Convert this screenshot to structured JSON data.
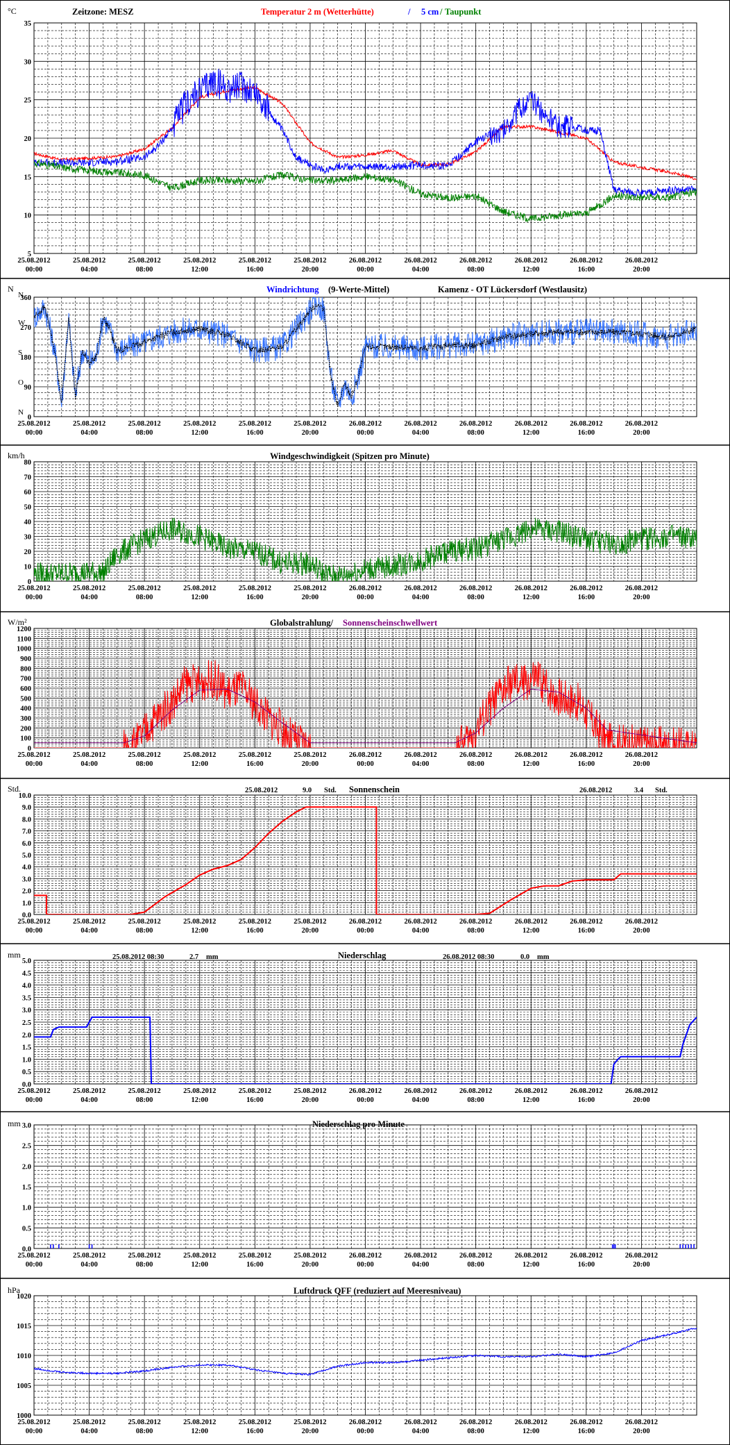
{
  "page": {
    "background": "#ffffff",
    "grid_color": "#000000"
  },
  "xaxis": {
    "ticks": [
      {
        "date": "25.08.2012",
        "time": "00:00"
      },
      {
        "date": "25.08.2012",
        "time": "04:00"
      },
      {
        "date": "25.08.2012",
        "time": "08:00"
      },
      {
        "date": "25.08.2012",
        "time": "12:00"
      },
      {
        "date": "25.08.2012",
        "time": "16:00"
      },
      {
        "date": "25.08.2012",
        "time": "20:00"
      },
      {
        "date": "26.08.2012",
        "time": "00:00"
      },
      {
        "date": "26.08.2012",
        "time": "04:00"
      },
      {
        "date": "26.08.2012",
        "time": "08:00"
      },
      {
        "date": "26.08.2012",
        "time": "12:00"
      },
      {
        "date": "26.08.2012",
        "time": "16:00"
      },
      {
        "date": "26.08.2012",
        "time": "20:00"
      }
    ],
    "range_hours": [
      0,
      48
    ]
  },
  "chart_data": [
    {
      "id": "temperature",
      "type": "line",
      "unit": "°C",
      "ylim": [
        5,
        35
      ],
      "yticks": [
        5,
        10,
        15,
        20,
        25,
        30,
        35
      ],
      "titles": [
        {
          "text": "Zeitzone: MESZ",
          "color": "#000000"
        },
        {
          "text": "Temperatur 2 m (Wetterhütte)",
          "color": "#ff0000"
        },
        {
          "text": "/",
          "color": "#0000ff"
        },
        {
          "text": "5 cm",
          "color": "#0000ff"
        },
        {
          "text": "/",
          "color": "#008000"
        },
        {
          "text": "Taupunkt",
          "color": "#008000"
        }
      ],
      "series": [
        {
          "name": "Temperatur 2 m (Wetterhütte)",
          "color": "#ff0000",
          "x": [
            0,
            2,
            4,
            6,
            8,
            10,
            12,
            14,
            16,
            18,
            20,
            22,
            24,
            26,
            28,
            30,
            32,
            34,
            36,
            38,
            40,
            42,
            44,
            46,
            48
          ],
          "y": [
            18,
            17.2,
            17.4,
            17.6,
            18.6,
            21.3,
            25.3,
            26.2,
            26.6,
            24.5,
            19.4,
            17.5,
            17.8,
            18.4,
            16.5,
            16.6,
            18.2,
            21.5,
            21.5,
            20.8,
            20,
            16.9,
            16.2,
            15.6,
            14.7
          ],
          "noise": 0.2
        },
        {
          "name": "5 cm",
          "color": "#0000ff",
          "x": [
            0,
            2,
            4,
            6,
            8,
            9,
            10,
            11,
            12,
            13,
            14,
            15,
            16,
            17,
            18,
            19,
            20,
            21,
            22,
            24,
            26,
            28,
            30,
            32,
            33,
            34,
            35,
            36,
            37,
            38,
            39,
            40,
            41,
            42,
            44,
            46,
            48
          ],
          "y": [
            16.8,
            16.8,
            16.8,
            17,
            17.5,
            19,
            21.3,
            24.5,
            26,
            27.5,
            26.5,
            26.8,
            26.2,
            23.5,
            21,
            17.5,
            16.5,
            15.8,
            16.4,
            16.2,
            16.3,
            16.5,
            16.4,
            19.5,
            20.5,
            21,
            23.5,
            25,
            23,
            21.5,
            21.5,
            21,
            21,
            13.3,
            12.8,
            13.2,
            13.3
          ],
          "noise": 0.5,
          "noise_hours": [
            10,
            17,
            4.0,
            33,
            39,
            3.0
          ]
        },
        {
          "name": "Taupunkt",
          "color": "#008000",
          "x": [
            0,
            2,
            4,
            6,
            8,
            10,
            12,
            14,
            16,
            18,
            20,
            22,
            24,
            26,
            28,
            30,
            32,
            34,
            36,
            38,
            40,
            42,
            44,
            46,
            48
          ],
          "y": [
            16.8,
            16.2,
            15.8,
            15.5,
            15.2,
            13.5,
            14.5,
            14.5,
            14.4,
            15.2,
            14.5,
            14.5,
            15,
            14.6,
            12.8,
            12.2,
            12.5,
            10.5,
            9.5,
            10,
            10.2,
            12.5,
            12.3,
            12.3,
            13
          ],
          "noise": 0.5
        }
      ]
    },
    {
      "id": "wind_direction",
      "type": "line",
      "unit": "N",
      "ylim": [
        0,
        360
      ],
      "yticks": [
        0,
        90,
        180,
        270,
        360
      ],
      "compass": [
        {
          "label": "N",
          "value": 360
        },
        {
          "label": "W",
          "value": 270
        },
        {
          "label": "S",
          "value": 180
        },
        {
          "label": "O",
          "value": 90
        },
        {
          "label": "N",
          "value": 0
        }
      ],
      "titles": [
        {
          "text": "Windrichtung",
          "color": "#0000ff"
        },
        {
          "text": "(9-Werte-Mittel)",
          "color": "#000000"
        },
        {
          "text": "Kamenz - OT Lückersdorf (Westlausitz)",
          "color": "#000000"
        }
      ],
      "series": [
        {
          "name": "Windrichtung",
          "color": "#3070ff",
          "x": [
            0,
            0.8,
            1.5,
            2,
            2.5,
            3,
            3.5,
            4,
            4.5,
            5,
            5.5,
            6,
            7,
            8,
            10,
            12,
            14,
            16,
            18,
            20,
            20.5,
            21,
            21.5,
            22,
            22.5,
            23,
            23.5,
            24,
            26,
            28,
            30,
            32,
            34,
            36,
            38,
            40,
            42,
            44,
            46,
            48
          ],
          "y": [
            300,
            330,
            200,
            40,
            300,
            60,
            200,
            160,
            180,
            300,
            260,
            200,
            210,
            225,
            255,
            265,
            245,
            200,
            210,
            320,
            340,
            320,
            120,
            30,
            100,
            60,
            120,
            210,
            210,
            205,
            215,
            215,
            240,
            250,
            255,
            255,
            255,
            250,
            240,
            265
          ],
          "noise": 40
        },
        {
          "name": "9-Werte-Mittel",
          "color": "#000000",
          "x": [
            0,
            0.8,
            1.5,
            2,
            2.5,
            3,
            3.5,
            4,
            4.5,
            5,
            5.5,
            6,
            7,
            8,
            10,
            12,
            14,
            16,
            18,
            20,
            20.5,
            21,
            21.5,
            22,
            22.5,
            23,
            23.5,
            24,
            26,
            28,
            30,
            32,
            34,
            36,
            38,
            40,
            42,
            44,
            46,
            48
          ],
          "y": [
            300,
            330,
            200,
            40,
            300,
            60,
            200,
            160,
            180,
            300,
            260,
            200,
            210,
            225,
            255,
            265,
            245,
            200,
            210,
            320,
            340,
            320,
            120,
            30,
            100,
            60,
            120,
            210,
            210,
            205,
            215,
            215,
            240,
            250,
            255,
            255,
            255,
            250,
            240,
            265
          ],
          "noise": 10
        }
      ]
    },
    {
      "id": "wind_speed",
      "type": "line",
      "unit": "km/h",
      "ylim": [
        0,
        80
      ],
      "yticks": [
        0,
        10,
        20,
        30,
        40,
        50,
        60,
        70,
        80
      ],
      "titles": [
        {
          "text": "Windgeschwindigkeit (Spitzen pro Minute)",
          "color": "#000000"
        }
      ],
      "series": [
        {
          "name": "Windgeschwindigkeit",
          "color": "#008000",
          "x": [
            0,
            2,
            4,
            5,
            6,
            8,
            10,
            12,
            14,
            16,
            18,
            20,
            21,
            22,
            24,
            26,
            28,
            30,
            32,
            34,
            36,
            38,
            40,
            42,
            44,
            46,
            48
          ],
          "y": [
            5,
            5,
            6,
            5,
            18,
            28,
            35,
            30,
            22,
            20,
            12,
            12,
            5,
            3,
            8,
            10,
            14,
            20,
            22,
            28,
            35,
            33,
            28,
            25,
            28,
            30,
            28
          ],
          "noise": 8
        }
      ]
    },
    {
      "id": "radiation",
      "type": "line",
      "unit": "W/m²",
      "ylim": [
        0,
        1200
      ],
      "yticks": [
        0,
        100,
        200,
        300,
        400,
        500,
        600,
        700,
        800,
        900,
        1000,
        1100,
        1200
      ],
      "titles": [
        {
          "text": "Globalstrahlung/",
          "color": "#000000"
        },
        {
          "text": "Sonnenscheinschwellwert",
          "color": "#800080"
        }
      ],
      "series": [
        {
          "name": "Globalstrahlung",
          "color": "#ff0000",
          "x": [
            0,
            6.5,
            7.5,
            8.5,
            10,
            11,
            12,
            13,
            14,
            15,
            16,
            17,
            18,
            19,
            20,
            30.5,
            31.5,
            32.5,
            33.5,
            34.5,
            35.5,
            36.5,
            37.5,
            38.5,
            39.5,
            40.5,
            41.5,
            48
          ],
          "y": [
            0,
            0,
            60,
            250,
            450,
            650,
            650,
            700,
            550,
            600,
            450,
            300,
            180,
            60,
            0,
            0,
            70,
            300,
            500,
            650,
            650,
            700,
            550,
            500,
            450,
            250,
            60,
            0
          ],
          "noise": 200
        },
        {
          "name": "Sonnenscheinschwellwert",
          "color": "#800080",
          "x": [
            0,
            6.5,
            8,
            10,
            12,
            14,
            16,
            18,
            20,
            30.5,
            32,
            34,
            36,
            38,
            40,
            41.5,
            48
          ],
          "y": [
            50,
            50,
            120,
            380,
            580,
            590,
            460,
            250,
            50,
            50,
            150,
            400,
            590,
            560,
            400,
            180,
            50
          ],
          "noise": 0
        }
      ]
    },
    {
      "id": "sunshine",
      "type": "line",
      "unit": "Std.",
      "ylim": [
        0,
        10
      ],
      "yticks": [
        "0.0",
        "1.0",
        "2.0",
        "3.0",
        "4.0",
        "5.0",
        "6.0",
        "7.0",
        "8.0",
        "9.0",
        "10.0"
      ],
      "titles": [
        {
          "text": "Sonnenschein",
          "color": "#000000"
        }
      ],
      "annotations": [
        {
          "text": "25.08.2012",
          "color": "#000000"
        },
        {
          "text": "9.0",
          "color": "#000000"
        },
        {
          "text": "Std.",
          "color": "#000000"
        },
        {
          "text": "26.08.2012",
          "color": "#000000"
        },
        {
          "text": "3.4",
          "color": "#000000"
        },
        {
          "text": "Std.",
          "color": "#000000"
        }
      ],
      "series": [
        {
          "name": "Sonnenschein",
          "color": "#ff0000",
          "x": [
            0,
            0.9,
            0.9,
            7,
            8,
            9.5,
            11,
            12,
            13,
            14,
            15,
            16,
            17,
            18,
            19,
            19.7,
            24.8,
            24.8,
            32,
            33,
            34.5,
            36,
            37,
            38,
            39,
            40,
            41,
            42,
            42.5,
            48
          ],
          "y": [
            1.6,
            1.6,
            0,
            0,
            0.2,
            1.5,
            2.5,
            3.3,
            3.8,
            4.1,
            4.6,
            5.6,
            6.8,
            7.8,
            8.6,
            9.0,
            9.0,
            0,
            0,
            0.1,
            1.2,
            2.2,
            2.4,
            2.4,
            2.8,
            2.9,
            2.9,
            2.9,
            3.4,
            3.4
          ],
          "noise": 0
        }
      ]
    },
    {
      "id": "precipitation",
      "type": "line",
      "unit": "mm",
      "ylim": [
        0,
        5
      ],
      "yticks": [
        "0.0",
        "0.5",
        "1.0",
        "1.5",
        "2.0",
        "2.5",
        "3.0",
        "3.5",
        "4.0",
        "4.5",
        "5.0"
      ],
      "titles": [
        {
          "text": "Niederschlag",
          "color": "#000000"
        }
      ],
      "annotations": [
        {
          "text": "25.08.2012 08:30",
          "color": "#000000"
        },
        {
          "text": "2.7",
          "color": "#000000"
        },
        {
          "text": "mm",
          "color": "#000000"
        },
        {
          "text": "26.08.2012 08:30",
          "color": "#000000"
        },
        {
          "text": "0.0",
          "color": "#000000"
        },
        {
          "text": "mm",
          "color": "#000000"
        }
      ],
      "series": [
        {
          "name": "Niederschlag",
          "color": "#0000ff",
          "x": [
            0,
            1.2,
            1.4,
            1.8,
            2,
            3.8,
            4,
            4.2,
            8.4,
            8.5,
            41.8,
            42,
            42.3,
            42.5,
            46.8,
            47,
            47.5,
            48
          ],
          "y": [
            1.9,
            1.9,
            2.2,
            2.3,
            2.3,
            2.3,
            2.5,
            2.7,
            2.7,
            0,
            0,
            0.8,
            1.0,
            1.1,
            1.1,
            1.6,
            2.4,
            2.7
          ],
          "noise": 0
        }
      ]
    },
    {
      "id": "precipitation_per_minute",
      "type": "bar",
      "unit": "mm",
      "ylim": [
        0,
        3
      ],
      "yticks": [
        "0.0",
        "0.5",
        "1.0",
        "1.5",
        "2.0",
        "2.5",
        "3.0"
      ],
      "titles": [
        {
          "text": "Niederschlag pro Minute",
          "color": "#000000"
        }
      ],
      "series": [
        {
          "name": "Niederschlag pro Minute",
          "color": "#0000ff",
          "x": [
            1.2,
            1.4,
            1.8,
            4.0,
            4.2,
            41.9,
            42.0,
            42.1,
            46.8,
            47.0,
            47.2,
            47.4,
            47.6,
            47.8
          ],
          "y": [
            0.1,
            0.1,
            0.1,
            0.1,
            0.1,
            0.1,
            0.1,
            0.1,
            0.1,
            0.1,
            0.1,
            0.1,
            0.1,
            0.1
          ],
          "noise": 0
        }
      ]
    },
    {
      "id": "pressure",
      "type": "line",
      "unit": "hPa",
      "ylim": [
        1000,
        1020
      ],
      "yticks": [
        1000,
        1005,
        1010,
        1015,
        1020
      ],
      "titles": [
        {
          "text": "Luftdruck QFF (reduziert auf Meeresniveau)",
          "color": "#000000"
        }
      ],
      "series": [
        {
          "name": "Luftdruck QFF",
          "color": "#0000ff",
          "x": [
            0,
            2,
            4,
            6,
            8,
            10,
            12,
            14,
            16,
            18,
            20,
            22,
            24,
            26,
            28,
            30,
            32,
            34,
            36,
            38,
            40,
            42,
            44,
            46,
            48
          ],
          "y": [
            1007.8,
            1007.2,
            1007,
            1007,
            1007.4,
            1008,
            1008.4,
            1008.4,
            1007.6,
            1007,
            1006.8,
            1008.2,
            1008.8,
            1008.8,
            1009.2,
            1009.6,
            1010,
            1009.8,
            1009.8,
            1010.2,
            1009.8,
            1010.4,
            1012.5,
            1013.5,
            1014.6
          ],
          "noise": 0.15
        }
      ]
    }
  ]
}
